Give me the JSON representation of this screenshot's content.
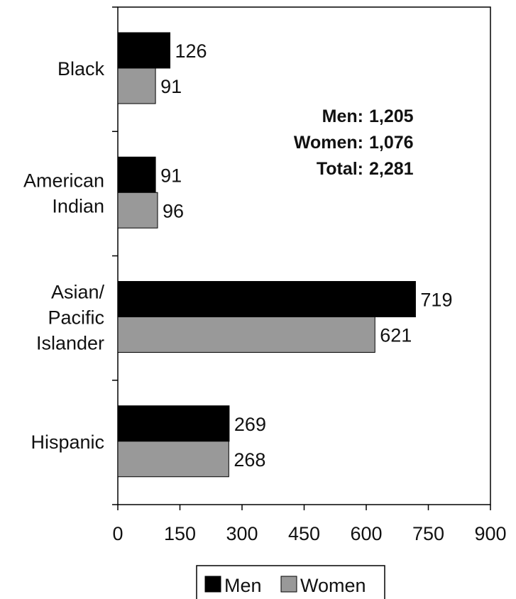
{
  "chart_data": {
    "type": "bar",
    "orientation": "horizontal",
    "categories": [
      [
        "Black"
      ],
      [
        "American",
        "Indian"
      ],
      [
        "Asian/",
        "Pacific",
        "Islander"
      ],
      [
        "Hispanic"
      ]
    ],
    "series": [
      {
        "name": "Men",
        "color": "#000000",
        "values": [
          126,
          91,
          719,
          269
        ],
        "labels": [
          "126",
          "91",
          "719",
          "269"
        ]
      },
      {
        "name": "Women",
        "color": "#999999",
        "values": [
          91,
          96,
          621,
          268
        ],
        "labels": [
          "91",
          "96",
          "621",
          "268"
        ]
      }
    ],
    "xlim": [
      0,
      900
    ],
    "xticks": [
      "0",
      "150",
      "300",
      "450",
      "600",
      "750",
      "900"
    ],
    "grid": false,
    "legend": "bottom",
    "summary": [
      {
        "label": "Men:",
        "value": "1,205"
      },
      {
        "label": "Women:",
        "value": "1,076"
      },
      {
        "label": "Total:",
        "value": "2,281"
      }
    ]
  }
}
